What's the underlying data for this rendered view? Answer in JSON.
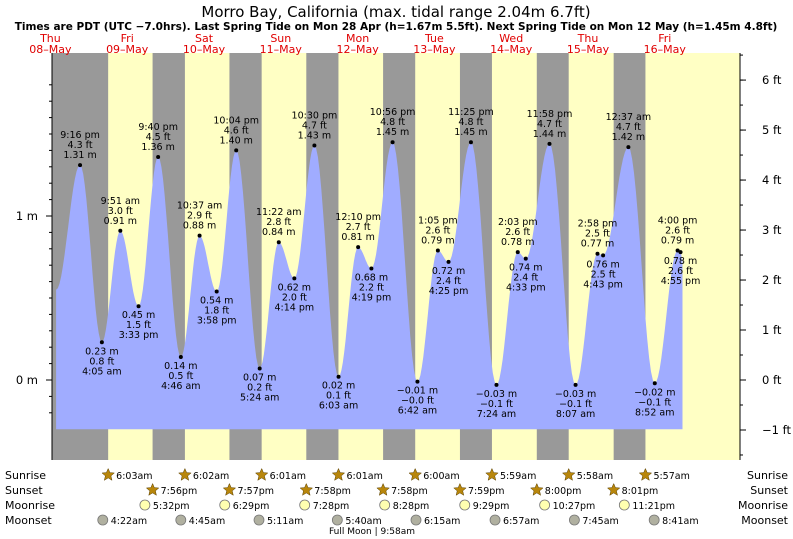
{
  "title": "Morro Bay, California (max. tidal range 2.04m 6.7ft)",
  "subtitle": "Times are PDT (UTC −7.0hrs). Last Spring Tide on Mon 28 Apr (h=1.67m 5.5ft). Next Spring Tide on Mon 12 May (h=1.45m 4.8ft)",
  "colors": {
    "water": "#a0acff",
    "day": "#ffffc4",
    "night": "#999999",
    "day_label": "#e00000",
    "star": "#b8860b",
    "moonrise": "#ffffb0",
    "moonset": "#b0b0a0"
  },
  "chart_data": {
    "type": "area",
    "title": "Morro Bay, California (max. tidal range 2.04m 6.7ft)",
    "days": [
      {
        "weekday": "Thu",
        "date": "08–May"
      },
      {
        "weekday": "Fri",
        "date": "09–May"
      },
      {
        "weekday": "Sat",
        "date": "10–May"
      },
      {
        "weekday": "Sun",
        "date": "11–May"
      },
      {
        "weekday": "Mon",
        "date": "12–May"
      },
      {
        "weekday": "Tue",
        "date": "13–May"
      },
      {
        "weekday": "Wed",
        "date": "14–May"
      },
      {
        "weekday": "Thu",
        "date": "15–May"
      },
      {
        "weekday": "Fri",
        "date": "16–May"
      }
    ],
    "y_left_ticks": [
      "0 m",
      "1 m"
    ],
    "y_right_ticks": [
      "−1 ft",
      "0 ft",
      "1 ft",
      "2 ft",
      "3 ft",
      "4 ft",
      "5 ft",
      "6 ft"
    ],
    "tides": [
      {
        "day": 0,
        "time": "9:16 pm",
        "ft": "4.3 ft",
        "m": "1.31 m",
        "height_m": 1.31,
        "type": "high"
      },
      {
        "day": 1,
        "time": "4:05 am",
        "ft": "0.8 ft",
        "m": "0.23 m",
        "height_m": 0.23,
        "type": "low"
      },
      {
        "day": 1,
        "time": "9:51 am",
        "ft": "3.0 ft",
        "m": "0.91 m",
        "height_m": 0.91,
        "type": "high"
      },
      {
        "day": 1,
        "time": "3:33 pm",
        "ft": "1.5 ft",
        "m": "0.45 m",
        "height_m": 0.45,
        "type": "low"
      },
      {
        "day": 1,
        "time": "9:40 pm",
        "ft": "4.5 ft",
        "m": "1.36 m",
        "height_m": 1.36,
        "type": "high"
      },
      {
        "day": 2,
        "time": "4:46 am",
        "ft": "0.5 ft",
        "m": "0.14 m",
        "height_m": 0.14,
        "type": "low"
      },
      {
        "day": 2,
        "time": "10:37 am",
        "ft": "2.9 ft",
        "m": "0.88 m",
        "height_m": 0.88,
        "type": "high"
      },
      {
        "day": 2,
        "time": "3:58 pm",
        "ft": "1.8 ft",
        "m": "0.54 m",
        "height_m": 0.54,
        "type": "low"
      },
      {
        "day": 2,
        "time": "10:04 pm",
        "ft": "4.6 ft",
        "m": "1.40 m",
        "height_m": 1.4,
        "type": "high"
      },
      {
        "day": 3,
        "time": "5:24 am",
        "ft": "0.2 ft",
        "m": "0.07 m",
        "height_m": 0.07,
        "type": "low"
      },
      {
        "day": 3,
        "time": "11:22 am",
        "ft": "2.8 ft",
        "m": "0.84 m",
        "height_m": 0.84,
        "type": "high"
      },
      {
        "day": 3,
        "time": "4:14 pm",
        "ft": "2.0 ft",
        "m": "0.62 m",
        "height_m": 0.62,
        "type": "low"
      },
      {
        "day": 3,
        "time": "10:30 pm",
        "ft": "4.7 ft",
        "m": "1.43 m",
        "height_m": 1.43,
        "type": "high"
      },
      {
        "day": 4,
        "time": "6:03 am",
        "ft": "0.1 ft",
        "m": "0.02 m",
        "height_m": 0.02,
        "type": "low"
      },
      {
        "day": 4,
        "time": "12:10 pm",
        "ft": "2.7 ft",
        "m": "0.81 m",
        "height_m": 0.81,
        "type": "high"
      },
      {
        "day": 4,
        "time": "4:19 pm",
        "ft": "2.2 ft",
        "m": "0.68 m",
        "height_m": 0.68,
        "type": "low"
      },
      {
        "day": 4,
        "time": "10:56 pm",
        "ft": "4.8 ft",
        "m": "1.45 m",
        "height_m": 1.45,
        "type": "high"
      },
      {
        "day": 5,
        "time": "6:42 am",
        "ft": "−0.0 ft",
        "m": "−0.01 m",
        "height_m": -0.01,
        "type": "low"
      },
      {
        "day": 5,
        "time": "1:05 pm",
        "ft": "2.6 ft",
        "m": "0.79 m",
        "height_m": 0.79,
        "type": "high"
      },
      {
        "day": 5,
        "time": "4:25 pm",
        "ft": "2.4 ft",
        "m": "0.72 m",
        "height_m": 0.72,
        "type": "low"
      },
      {
        "day": 5,
        "time": "11:25 pm",
        "ft": "4.8 ft",
        "m": "1.45 m",
        "height_m": 1.45,
        "type": "high"
      },
      {
        "day": 6,
        "time": "7:24 am",
        "ft": "−0.1 ft",
        "m": "−0.03 m",
        "height_m": -0.03,
        "type": "low"
      },
      {
        "day": 6,
        "time": "2:03 pm",
        "ft": "2.6 ft",
        "m": "0.78 m",
        "height_m": 0.78,
        "type": "high"
      },
      {
        "day": 6,
        "time": "4:33 pm",
        "ft": "2.4 ft",
        "m": "0.74 m",
        "height_m": 0.74,
        "type": "low"
      },
      {
        "day": 6,
        "time": "11:58 pm",
        "ft": "4.7 ft",
        "m": "1.44 m",
        "height_m": 1.44,
        "type": "high"
      },
      {
        "day": 7,
        "time": "8:07 am",
        "ft": "−0.1 ft",
        "m": "−0.03 m",
        "height_m": -0.03,
        "type": "low"
      },
      {
        "day": 7,
        "time": "2:58 pm",
        "ft": "2.5 ft",
        "m": "0.77 m",
        "height_m": 0.77,
        "type": "high"
      },
      {
        "day": 7,
        "time": "4:43 pm",
        "ft": "2.5 ft",
        "m": "0.76 m",
        "height_m": 0.76,
        "type": "low"
      },
      {
        "day": 8,
        "time": "12:37 am",
        "ft": "4.7 ft",
        "m": "1.42 m",
        "height_m": 1.42,
        "type": "high"
      },
      {
        "day": 8,
        "time": "8:52 am",
        "ft": "−0.1 ft",
        "m": "−0.02 m",
        "height_m": -0.02,
        "type": "low"
      },
      {
        "day": 8,
        "time": "4:00 pm",
        "ft": "2.6 ft",
        "m": "0.79 m",
        "height_m": 0.79,
        "type": "high"
      },
      {
        "day": 8,
        "time": "4:55 pm",
        "ft": "2.6 ft",
        "m": "0.78 m",
        "height_m": 0.78,
        "type": "low"
      }
    ],
    "sunrise": [
      "6:03am",
      "6:02am",
      "6:01am",
      "6:01am",
      "6:00am",
      "5:59am",
      "5:58am",
      "5:57am"
    ],
    "sunset": [
      "7:56pm",
      "7:57pm",
      "7:58pm",
      "7:58pm",
      "7:59pm",
      "8:00pm",
      "8:01pm"
    ],
    "moonrise": [
      "5:32pm",
      "6:29pm",
      "7:28pm",
      "8:28pm",
      "9:29pm",
      "10:27pm",
      "11:21pm"
    ],
    "moonset": [
      "4:22am",
      "4:45am",
      "5:11am",
      "5:40am",
      "6:15am",
      "6:57am",
      "7:45am",
      "8:41am"
    ]
  },
  "rows": {
    "sunrise": "Sunrise",
    "sunset": "Sunset",
    "moonrise": "Moonrise",
    "moonset": "Moonset"
  },
  "full_moon": "Full Moon | 9:58am"
}
